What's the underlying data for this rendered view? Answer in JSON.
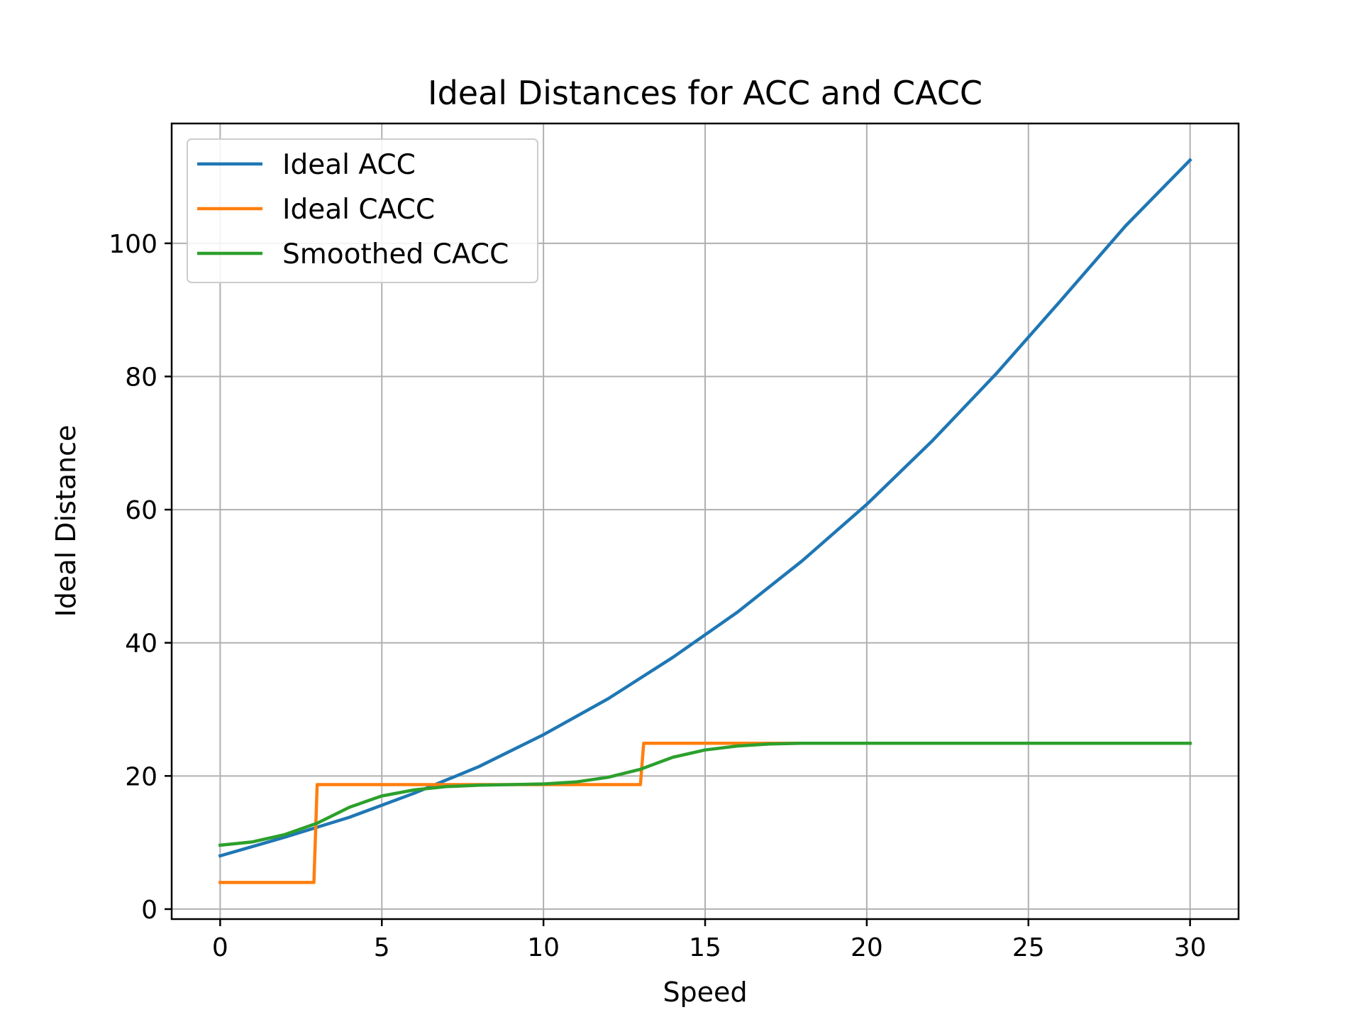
{
  "chart_data": {
    "type": "line",
    "title": "Ideal Distances for ACC and CACC",
    "xlabel": "Speed",
    "ylabel": "Ideal Distance",
    "xlim": [
      -1.5,
      31.5
    ],
    "ylim": [
      -1.5,
      118
    ],
    "xticks": [
      0,
      5,
      10,
      15,
      20,
      25,
      30
    ],
    "yticks": [
      0,
      20,
      40,
      60,
      80,
      100
    ],
    "grid": true,
    "legend": "upper-left",
    "series": [
      {
        "name": "Ideal ACC",
        "color": "#1f77b4",
        "x": [
          0,
          2,
          4,
          6,
          8,
          10,
          12,
          14,
          16,
          18,
          20,
          22,
          24,
          26,
          28,
          30
        ],
        "y": [
          8,
          10.8,
          13.8,
          17.4,
          21.4,
          26.2,
          31.6,
          37.8,
          44.6,
          52.3,
          60.8,
          70.2,
          80.4,
          91.4,
          102.6,
          112.5
        ]
      },
      {
        "name": "Ideal CACC",
        "color": "#ff7f0e",
        "x": [
          0,
          2.9,
          3.0,
          13.0,
          13.1,
          30
        ],
        "y": [
          4,
          4,
          18.7,
          18.7,
          24.9,
          24.9
        ]
      },
      {
        "name": "Smoothed CACC",
        "color": "#2ca02c",
        "x": [
          0,
          1,
          2,
          3,
          4,
          5,
          6,
          7,
          8,
          9,
          10,
          11,
          12,
          13,
          14,
          15,
          16,
          17,
          18,
          20,
          25,
          30
        ],
        "y": [
          9.6,
          10.1,
          11.2,
          12.9,
          15.3,
          17.0,
          17.9,
          18.4,
          18.6,
          18.7,
          18.8,
          19.1,
          19.8,
          21.0,
          22.8,
          23.9,
          24.5,
          24.8,
          24.9,
          24.9,
          24.9,
          24.9
        ]
      }
    ]
  }
}
